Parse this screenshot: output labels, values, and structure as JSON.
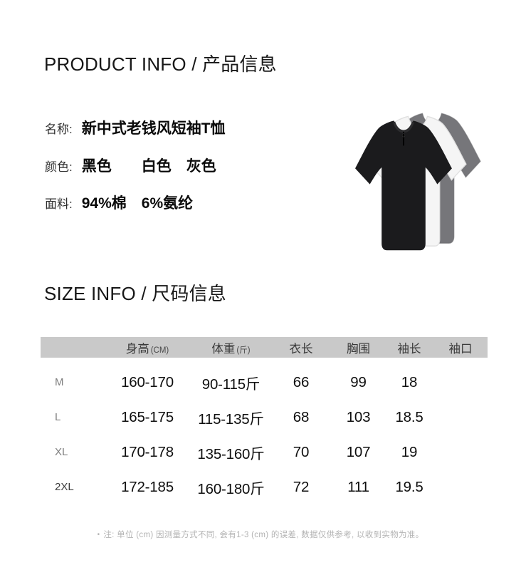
{
  "product_info": {
    "heading": "PRODUCT INFO / 产品信息",
    "fields": [
      {
        "label": "名称:",
        "value": "新中式老钱风短袖T恤"
      },
      {
        "label": "颜色:",
        "value": "黑色　　白色　灰色"
      },
      {
        "label": "面料:",
        "value": "94%棉　6%氨纶"
      }
    ],
    "image": {
      "shirts": [
        {
          "name": "gray-tshirt",
          "color": "#76767a",
          "stroke": "#6a6a6e"
        },
        {
          "name": "white-tshirt",
          "color": "#f5f5f5",
          "stroke": "#e0e0e0"
        },
        {
          "name": "black-tshirt",
          "color": "#1b1b1d",
          "stroke": "#141416"
        }
      ]
    }
  },
  "size_info": {
    "heading": "SIZE INFO / 尺码信息",
    "table": {
      "header": [
        {
          "main": "",
          "unit": ""
        },
        {
          "main": "身高",
          "unit": "(CM)"
        },
        {
          "main": "体重",
          "unit": "(斤)"
        },
        {
          "main": "衣长",
          "unit": ""
        },
        {
          "main": "胸围",
          "unit": ""
        },
        {
          "main": "袖长",
          "unit": ""
        },
        {
          "main": "袖口",
          "unit": ""
        }
      ],
      "rows": [
        {
          "size": "M",
          "height": "160-170",
          "weight": "90-115斤",
          "length": "66",
          "chest": "99",
          "sleeve": "18",
          "cuff": ""
        },
        {
          "size": "L",
          "height": "165-175",
          "weight": "115-135斤",
          "length": "68",
          "chest": "103",
          "sleeve": "18.5",
          "cuff": ""
        },
        {
          "size": "XL",
          "height": "170-178",
          "weight": "135-160斤",
          "length": "70",
          "chest": "107",
          "sleeve": "19",
          "cuff": ""
        },
        {
          "size": "2XL",
          "height": "172-185",
          "weight": "160-180斤",
          "length": "72",
          "chest": "111",
          "sleeve": "19.5",
          "cuff": ""
        }
      ]
    },
    "note": {
      "bullet": "•",
      "text": "注: 单位 (cm) 因测量方式不同, 会有1-3 (cm) 的误差, 数据仅供参考, 以收到实物为准。"
    }
  }
}
